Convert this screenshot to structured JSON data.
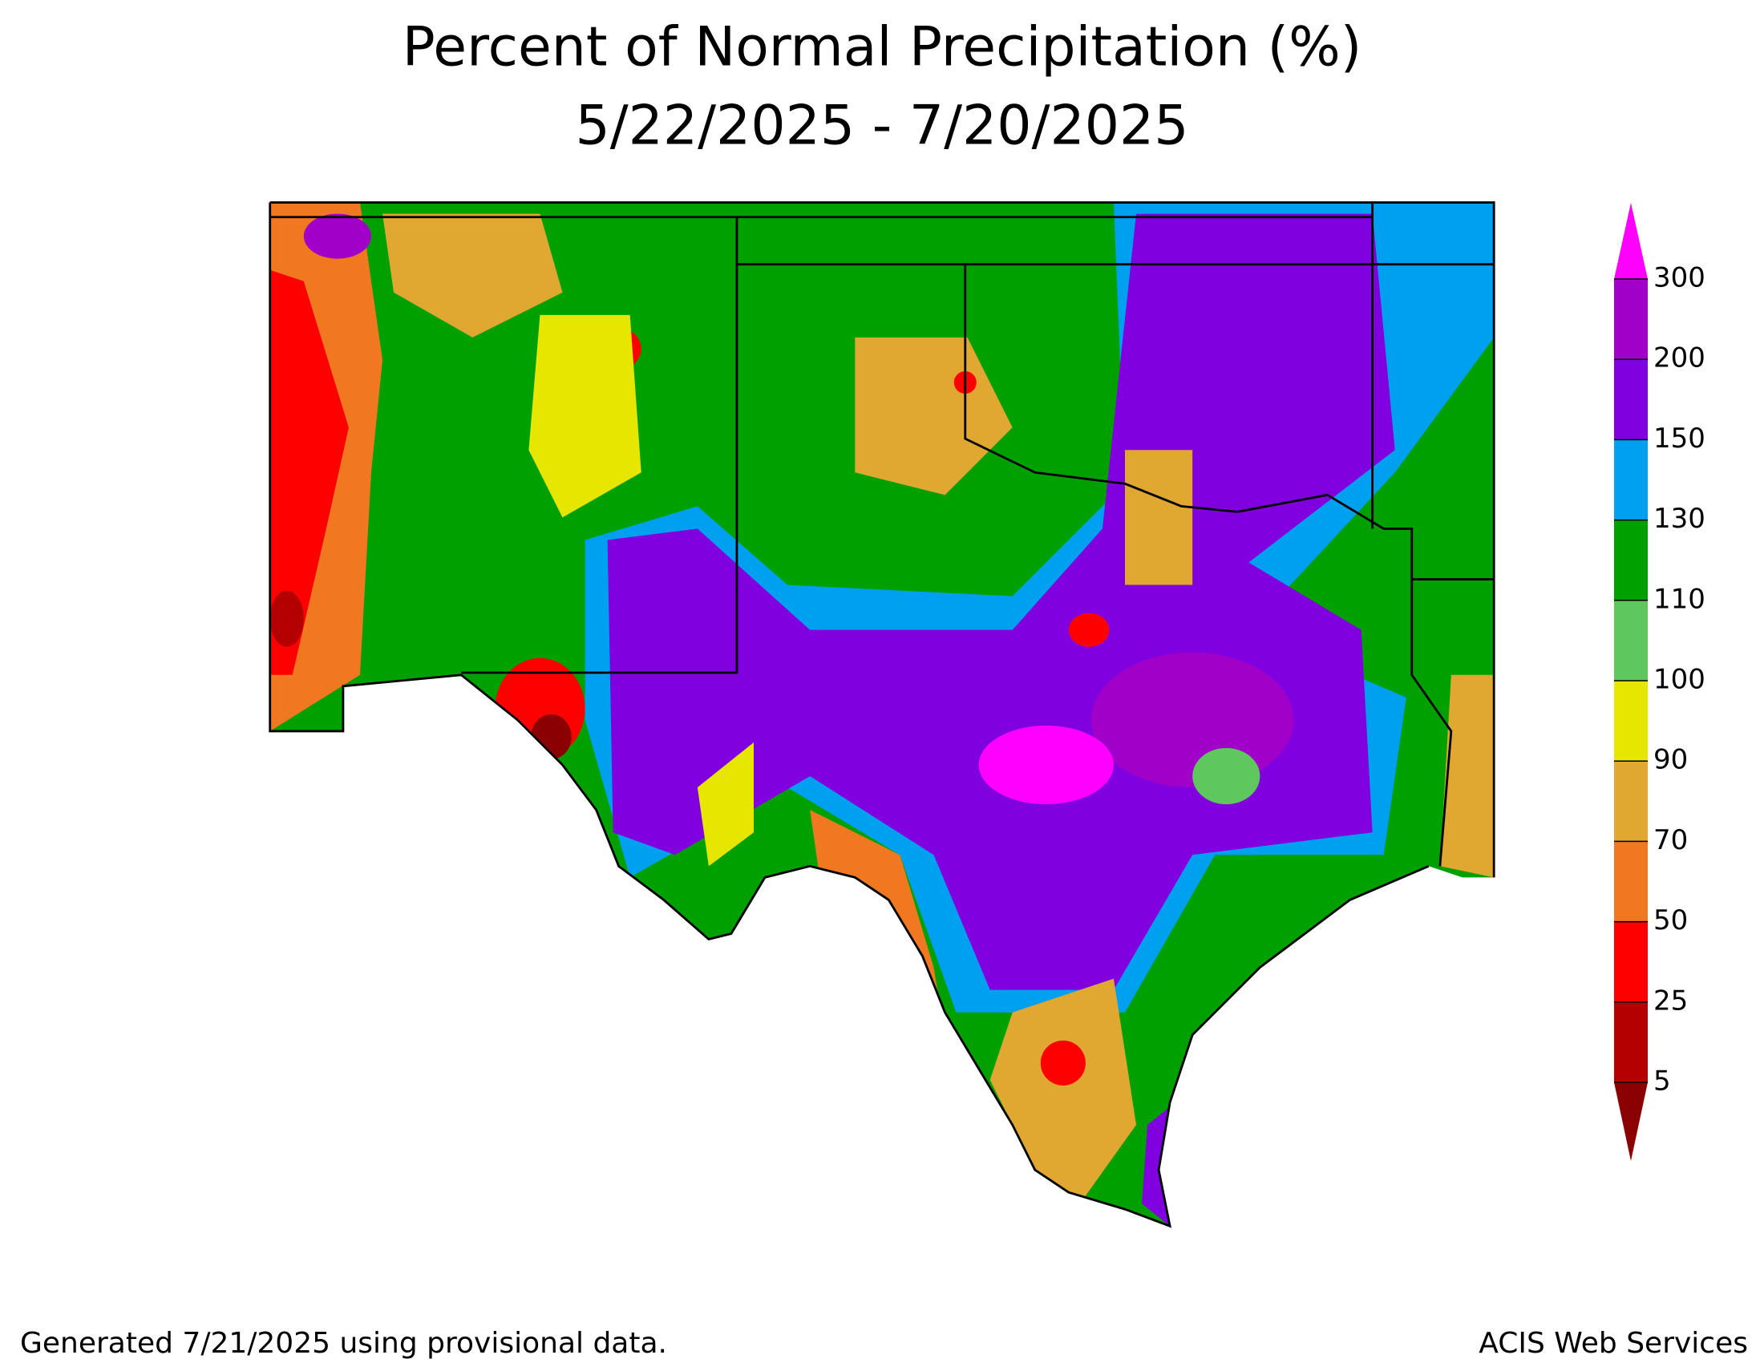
{
  "title": "Percent of Normal Precipitation (%)",
  "subtitle": "5/22/2025 - 7/20/2025",
  "legend": {
    "ticks": [
      5,
      25,
      50,
      70,
      90,
      100,
      110,
      130,
      150,
      200,
      300
    ],
    "colors": [
      "#8b0000",
      "#b40000",
      "#ff0000",
      "#f07820",
      "#e0a830",
      "#e6e600",
      "#5ec85e",
      "#00a000",
      "#00a0f0",
      "#8000e0",
      "#a000c8",
      "#ff00ff"
    ]
  },
  "footer": {
    "left": "Generated 7/21/2025 using provisional data.",
    "right": "ACIS Web Services"
  }
}
